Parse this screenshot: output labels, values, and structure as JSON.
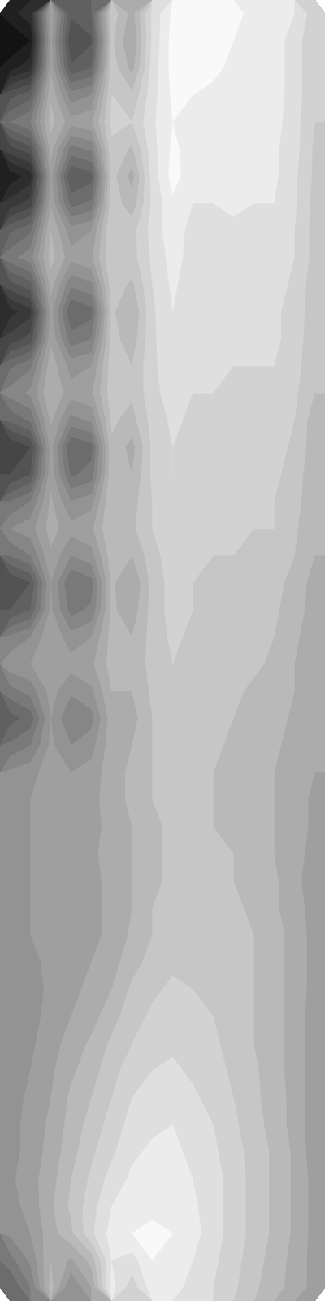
{
  "chart_data": {
    "type": "contour",
    "tick_labels": false,
    "zlim": [
      0,
      100
    ],
    "levels": [
      0,
      5,
      10,
      15,
      20,
      25,
      30,
      35,
      40,
      45,
      50,
      55,
      60,
      65,
      70,
      75,
      80,
      85,
      90,
      95
    ],
    "z": [
      [
        13,
        18,
        64,
        36,
        40,
        78,
        68,
        86,
        96,
        97,
        95,
        96,
        94,
        93,
        90,
        82
      ],
      [
        5,
        10,
        62,
        30,
        34,
        76,
        65,
        86,
        97,
        97,
        96,
        95,
        94,
        92,
        88,
        80
      ],
      [
        13,
        18,
        64,
        36,
        40,
        78,
        68,
        87,
        97,
        96,
        96,
        94,
        93,
        92,
        88,
        80
      ],
      [
        33,
        38,
        69,
        52,
        55,
        80,
        76,
        88,
        96,
        95,
        94,
        93,
        93,
        92,
        88,
        80
      ],
      [
        45,
        50,
        72,
        62,
        64,
        81,
        80,
        89,
        95,
        94,
        93,
        93,
        93,
        92,
        87,
        80
      ],
      [
        28,
        33,
        67,
        48,
        51,
        79,
        74,
        88,
        96,
        93,
        93,
        94,
        93,
        91,
        87,
        79
      ],
      [
        12,
        17,
        62,
        35,
        38,
        77,
        68,
        87,
        97,
        92,
        93,
        94,
        92,
        91,
        86,
        79
      ],
      [
        22,
        27,
        64,
        43,
        46,
        78,
        72,
        86,
        94,
        90,
        90,
        91,
        90,
        90,
        86,
        78
      ],
      [
        39,
        44,
        70,
        57,
        60,
        80,
        78,
        87,
        93,
        88,
        89,
        89,
        88,
        89,
        85,
        78
      ],
      [
        48,
        53,
        72,
        62,
        64,
        80,
        78,
        86,
        92,
        88,
        88,
        88,
        88,
        88,
        85,
        78
      ],
      [
        33,
        38,
        67,
        51,
        54,
        78,
        74,
        85,
        91,
        87,
        87,
        88,
        87,
        87,
        84,
        77
      ],
      [
        18,
        23,
        62,
        40,
        43,
        76,
        70,
        84,
        90,
        86,
        86,
        87,
        87,
        86,
        83,
        77
      ],
      [
        27,
        32,
        64,
        47,
        50,
        77,
        72,
        84,
        89,
        86,
        85,
        86,
        86,
        86,
        83,
        76
      ],
      [
        44,
        49,
        68,
        58,
        60,
        78,
        75,
        84,
        88,
        86,
        85,
        85,
        85,
        85,
        82,
        76
      ],
      [
        52,
        56,
        70,
        62,
        64,
        78,
        76,
        83,
        88,
        85,
        85,
        84,
        84,
        84,
        81,
        75
      ],
      [
        41,
        46,
        66,
        53,
        56,
        76,
        73,
        82,
        86,
        84,
        84,
        83,
        83,
        83,
        80,
        72
      ],
      [
        25,
        30,
        62,
        40,
        43,
        74,
        68,
        81,
        85,
        83,
        83,
        83,
        82,
        82,
        79,
        72
      ],
      [
        30,
        35,
        63,
        44,
        47,
        74,
        70,
        81,
        85,
        83,
        82,
        82,
        82,
        81,
        78,
        71
      ],
      [
        45,
        50,
        66,
        55,
        58,
        75,
        73,
        80,
        84,
        82,
        82,
        82,
        81,
        80,
        77,
        71
      ],
      [
        55,
        58,
        67,
        62,
        64,
        75,
        74,
        80,
        84,
        82,
        81,
        81,
        80,
        80,
        76,
        70
      ],
      [
        45,
        50,
        64,
        55,
        58,
        73,
        70,
        78,
        83,
        81,
        80,
        80,
        79,
        78,
        75,
        70
      ],
      [
        30,
        35,
        60,
        45,
        48,
        71,
        65,
        77,
        82,
        80,
        79,
        79,
        78,
        77,
        73,
        68
      ],
      [
        35,
        40,
        61,
        48,
        51,
        71,
        67,
        77,
        82,
        80,
        79,
        78,
        77,
        76,
        72,
        68
      ],
      [
        51,
        55,
        64,
        57,
        60,
        72,
        70,
        77,
        81,
        79,
        79,
        78,
        76,
        75,
        71,
        67
      ],
      [
        58,
        60,
        65,
        62,
        64,
        72,
        71,
        77,
        80,
        79,
        78,
        77,
        76,
        74,
        70,
        67
      ],
      [
        48,
        52,
        62,
        56,
        59,
        70,
        70,
        76,
        79,
        78,
        77,
        76,
        74,
        73,
        70,
        66
      ],
      [
        38,
        42,
        60,
        50,
        53,
        68,
        68,
        75,
        78,
        78,
        76,
        75,
        73,
        72,
        69,
        66
      ],
      [
        46,
        50,
        61,
        55,
        58,
        68,
        70,
        75,
        77,
        77,
        76,
        74,
        72,
        71,
        68,
        65
      ],
      [
        56,
        58,
        63,
        60,
        62,
        68,
        71,
        75,
        77,
        76,
        75,
        74,
        72,
        70,
        67,
        65
      ],
      [
        58,
        60,
        63,
        62,
        63,
        68,
        71,
        75,
        76,
        76,
        75,
        74,
        72,
        70,
        67,
        64
      ],
      [
        58,
        60,
        62,
        62,
        63,
        67,
        70,
        74,
        76,
        76,
        75,
        74,
        72,
        70,
        67,
        64
      ],
      [
        57,
        60,
        62,
        63,
        64,
        67,
        70,
        74,
        76,
        76,
        76,
        75,
        73,
        70,
        66,
        64
      ],
      [
        57,
        60,
        62,
        63,
        64,
        66,
        70,
        74,
        76,
        77,
        76,
        75,
        73,
        71,
        66,
        63
      ],
      [
        57,
        60,
        62,
        63,
        64,
        66,
        70,
        75,
        77,
        77,
        77,
        76,
        74,
        71,
        67,
        63
      ],
      [
        57,
        60,
        61,
        63,
        64,
        66,
        71,
        75,
        78,
        78,
        78,
        77,
        75,
        72,
        68,
        63
      ],
      [
        56,
        59,
        61,
        63,
        65,
        68,
        73,
        77,
        79,
        79,
        78,
        77,
        75,
        72,
        68,
        63
      ],
      [
        56,
        58,
        61,
        64,
        66,
        70,
        76,
        79,
        81,
        80,
        79,
        77,
        75,
        72,
        68,
        63
      ],
      [
        56,
        58,
        62,
        65,
        68,
        73,
        78,
        81,
        83,
        81,
        80,
        78,
        75,
        72,
        68,
        62
      ],
      [
        57,
        59,
        63,
        67,
        71,
        76,
        80,
        83,
        84,
        83,
        81,
        78,
        75,
        72,
        68,
        62
      ],
      [
        57,
        60,
        64,
        69,
        73,
        78,
        83,
        85,
        86,
        84,
        82,
        79,
        76,
        72,
        68,
        62
      ],
      [
        58,
        61,
        65,
        71,
        75,
        80,
        85,
        87,
        88,
        86,
        83,
        80,
        76,
        73,
        68,
        62
      ],
      [
        58,
        62,
        66,
        72,
        77,
        82,
        87,
        89,
        90,
        88,
        85,
        81,
        77,
        73,
        68,
        62
      ],
      [
        58,
        62,
        67,
        73,
        79,
        84,
        89,
        91,
        91,
        89,
        86,
        82,
        78,
        74,
        69,
        62
      ],
      [
        59,
        63,
        68,
        75,
        81,
        87,
        91,
        93,
        93,
        90,
        87,
        83,
        78,
        74,
        69,
        63
      ],
      [
        58,
        62,
        69,
        76,
        83,
        90,
        93,
        94,
        94,
        91,
        87,
        83,
        78,
        74,
        69,
        63
      ],
      [
        56,
        60,
        68,
        74,
        84,
        92,
        95,
        96,
        95,
        92,
        87,
        83,
        78,
        74,
        69,
        63
      ],
      [
        48,
        56,
        70,
        64,
        72,
        90,
        88,
        95,
        94,
        90,
        86,
        82,
        77,
        73,
        68,
        63
      ],
      [
        40,
        50,
        72,
        55,
        65,
        92,
        82,
        93,
        92,
        88,
        85,
        81,
        76,
        72,
        68,
        63
      ]
    ]
  }
}
